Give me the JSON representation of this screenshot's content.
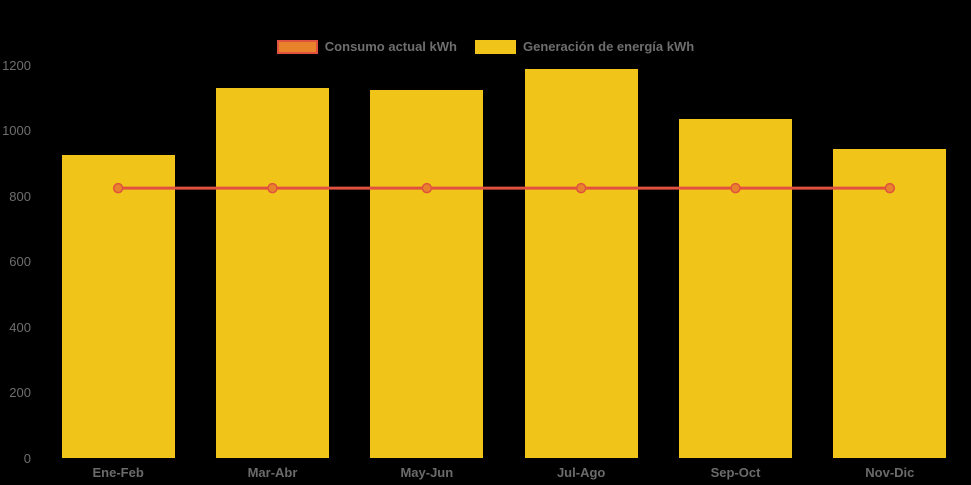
{
  "background_color": "#000000",
  "text_color": "#6e6e6e",
  "legend": {
    "items": [
      {
        "label": "Consumo actual kWh",
        "swatch_fill": "#e8832c",
        "swatch_border": "#e0513f",
        "series_type": "line"
      },
      {
        "label": "Generación de energía kWh",
        "swatch_fill": "#f0c419",
        "swatch_border": "#f0c419",
        "series_type": "bar"
      }
    ]
  },
  "chart_data": {
    "type": "bar",
    "subtype": "bar-with-line-overlay",
    "title": "",
    "xlabel": "",
    "ylabel": "",
    "categories": [
      "Ene-Feb",
      "Mar-Abr",
      "May-Jun",
      "Jul-Ago",
      "Sep-Oct",
      "Nov-Dic"
    ],
    "series": [
      {
        "name": "Generación de energía kWh",
        "type": "bar",
        "color": "#f0c419",
        "values": [
          925,
          1130,
          1125,
          1190,
          1035,
          945
        ]
      },
      {
        "name": "Consumo actual kWh",
        "type": "line",
        "color": "#e0513f",
        "marker_color": "#e8832c",
        "values": [
          825,
          825,
          825,
          825,
          825,
          825
        ]
      }
    ],
    "ylim": [
      0,
      1200
    ],
    "yticks": [
      0,
      200,
      400,
      600,
      800,
      1000,
      1200
    ],
    "grid": false,
    "legend_position": "top-center"
  }
}
